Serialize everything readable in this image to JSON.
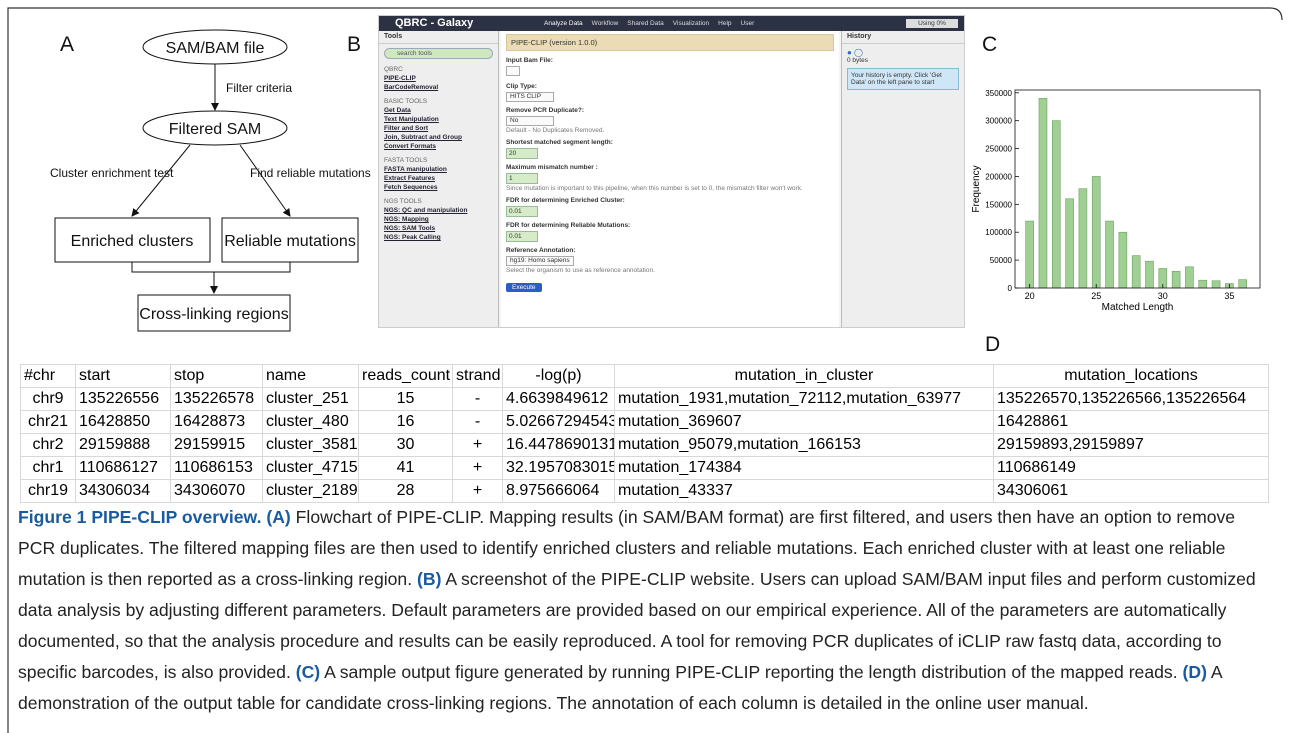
{
  "flowchart": {
    "label": "A",
    "nodes": [
      "SAM/BAM file",
      "Filtered SAM",
      "Enriched clusters",
      "Reliable mutations",
      "Cross-linking regions"
    ],
    "edge_labels": [
      "Filter criteria",
      "Cluster enrichment test",
      "Find reliable mutations"
    ]
  },
  "galaxy": {
    "label": "B",
    "brand": "QBRC - Galaxy",
    "nav": [
      "Analyze Data",
      "Workflow",
      "Shared Data",
      "Visualization",
      "Help",
      "User"
    ],
    "usage": "Using 0%",
    "tools_title": "Tools",
    "search": "search tools",
    "tool_sections": [
      {
        "title": "QBRC",
        "links": [
          "PIPE-CLIP",
          "BarCodeRemoval"
        ]
      },
      {
        "title": "BASIC TOOLS",
        "links": [
          "Get Data",
          "Text Manipulation",
          "Filter and Sort",
          "Join, Subtract and Group",
          "Convert Formats"
        ]
      },
      {
        "title": "FASTA TOOLS",
        "links": [
          "FASTA manipulation",
          "Extract Features",
          "Fetch Sequences"
        ]
      },
      {
        "title": "NGS TOOLS",
        "links": [
          "NGS: QC and manipulation",
          "NGS: Mapping",
          "NGS: SAM Tools",
          "NGS: Peak Calling"
        ]
      }
    ],
    "form_title": "PIPE-CLIP (version 1.0.0)",
    "fields": [
      {
        "label": "Input Bam File:"
      },
      {
        "label": "Clip Type:",
        "select": "HITS CLIP"
      },
      {
        "label": "Remove PCR Duplicate?:",
        "select": "No",
        "help": "Default - No Duplicates Removed."
      },
      {
        "label": "Shortest matched segment length:",
        "input": "20"
      },
      {
        "label": "Maximum mismatch number :",
        "input": "1",
        "help": "Since mutation is important to this pipeline, when this number is set to 0, the mismatch filter won't work."
      },
      {
        "label": "FDR for determining Enriched Cluster:",
        "input": "0.01"
      },
      {
        "label": "FDR for determining Reliable Mutations:",
        "input": "0.01"
      },
      {
        "label": "Reference Annotation:",
        "select": "hg19: Homo sapiens",
        "help": "Select the organism to use as reference annotation."
      }
    ],
    "button": "Execute",
    "history": {
      "title": "History",
      "size": "0 bytes",
      "message": "Your history is empty. Click 'Get Data' on the left pane to start"
    }
  },
  "chart_data": {
    "type": "bar",
    "label": "C",
    "x_label": "Matched Length",
    "y_label": "Frequency",
    "x": [
      20,
      21,
      22,
      23,
      24,
      25,
      26,
      27,
      28,
      29,
      30,
      31,
      32,
      33,
      34,
      35,
      36
    ],
    "values": [
      120000,
      340000,
      300000,
      160000,
      178000,
      200000,
      120000,
      100000,
      58000,
      48000,
      35000,
      30000,
      38000,
      14000,
      13000,
      8000,
      15000
    ],
    "color": "#9fcf92",
    "xlim": [
      18.9,
      37.3
    ],
    "xticks": [
      20,
      25,
      30,
      35
    ],
    "ylim": [
      0,
      355000
    ],
    "yticks": [
      0,
      50000,
      100000,
      150000,
      200000,
      250000,
      300000,
      350000
    ]
  },
  "table": {
    "label": "D",
    "header": [
      "#chr",
      "start",
      "stop",
      "name",
      "reads_count",
      "strand",
      "-log(p)",
      "mutation_in_cluster",
      "mutation_locations"
    ],
    "rows": [
      [
        "chr9",
        "135226556",
        "135226578",
        "cluster_251",
        "15",
        "-",
        "4.6639849612",
        "mutation_1931,mutation_72112,mutation_63977",
        "135226570,135226566,135226564"
      ],
      [
        "chr21",
        "16428850",
        "16428873",
        "cluster_480",
        "16",
        "-",
        "5.02667294543",
        "mutation_369607",
        "16428861"
      ],
      [
        "chr2",
        "29159888",
        "29159915",
        "cluster_3581",
        "30",
        "+",
        "16.4478690131",
        "mutation_95079,mutation_166153",
        "29159893,29159897"
      ],
      [
        "chr1",
        "110686127",
        "110686153",
        "cluster_4715",
        "41",
        "+",
        "32.1957083015",
        "mutation_174384",
        "110686149"
      ],
      [
        "chr19",
        "34306034",
        "34306070",
        "cluster_2189",
        "28",
        "+",
        "8.975666064",
        "mutation_43337",
        "34306061"
      ]
    ]
  },
  "caption": [
    {
      "text": "Figure 1 PIPE-CLIP overview.",
      "bold": true
    },
    {
      "text": " "
    },
    {
      "text": "(A)",
      "bold": true
    },
    {
      "text": " Flowchart of PIPE-CLIP. Mapping results (in SAM/BAM format) are first filtered, and users then have an option to remove PCR duplicates. The filtered mapping files are then used to identify enriched clusters and reliable mutations. Each enriched cluster with at least one reliable mutation is then reported as a cross-linking region. "
    },
    {
      "text": "(B)",
      "bold": true
    },
    {
      "text": " A screenshot of the PIPE-CLIP website. Users can upload SAM/BAM input files and perform customized data analysis by adjusting different parameters. Default parameters are provided based on our empirical experience. All of the parameters are automatically documented, so that the analysis procedure and results can be easily reproduced. A tool for removing PCR duplicates of iCLIP raw fastq data, according to specific barcodes, is also provided. "
    },
    {
      "text": "(C)",
      "bold": true
    },
    {
      "text": " A sample output figure generated by running PIPE-CLIP reporting the length distribution of the mapped reads. "
    },
    {
      "text": "(D)",
      "bold": true
    },
    {
      "text": " A demonstration of the output table for candidate cross-linking regions. The annotation of each column is detailed in the online user manual."
    }
  ]
}
